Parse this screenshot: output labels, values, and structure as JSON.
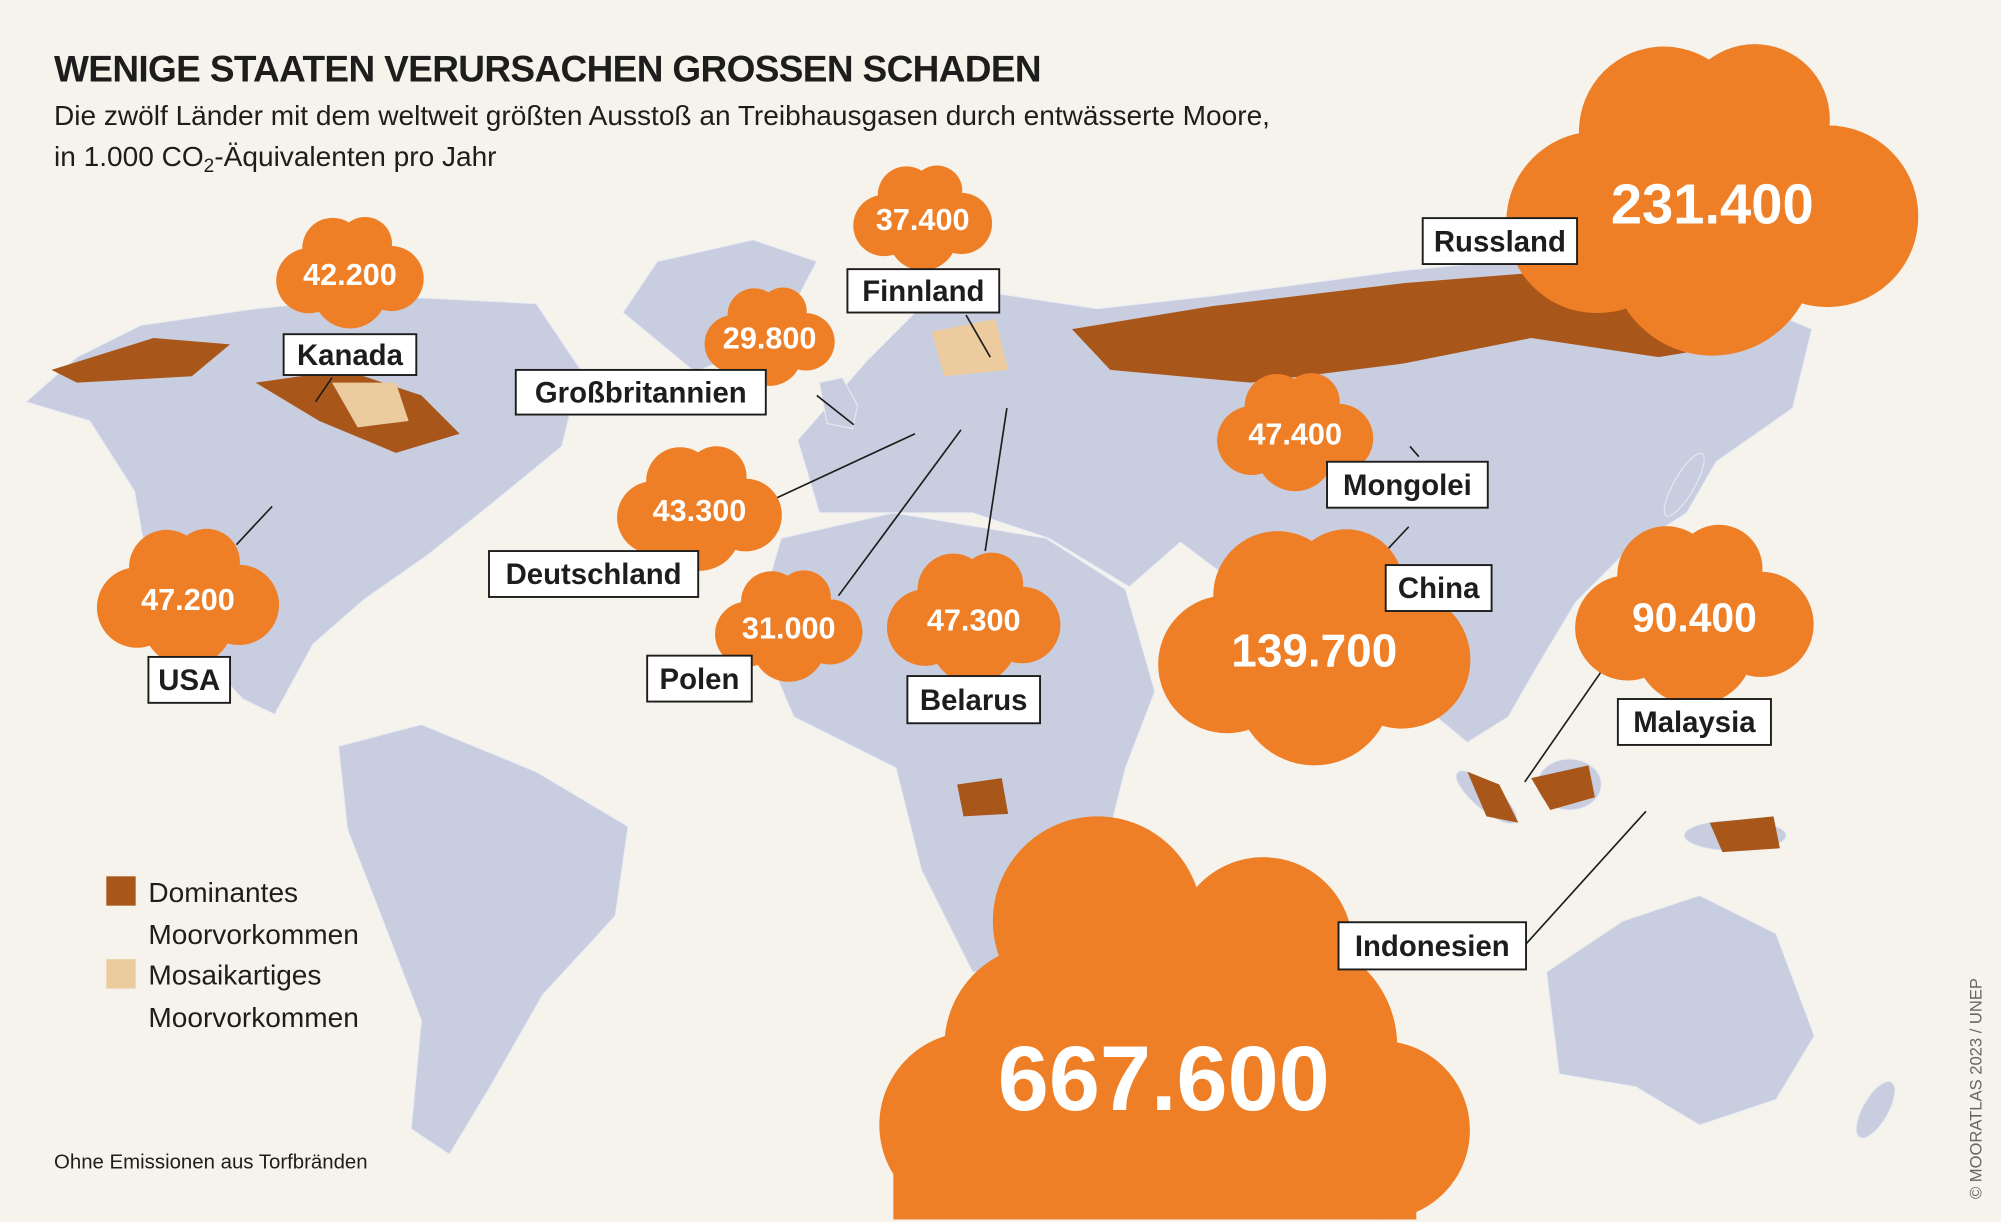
{
  "title": "WENIGE STAATEN VERURSACHEN GROSSEN SCHADEN",
  "subtitle": {
    "line1": "Die zwölf Länder mit dem weltweit größten Ausstoß an Treibhausgasen durch entwässerte Moore,",
    "line2_pre": "in 1.000 CO",
    "line2_sub": "2",
    "line2_post": "-Äquivalenten pro Jahr"
  },
  "countries": [
    {
      "name": "Kanada",
      "value": "42.200"
    },
    {
      "name": "Finnland",
      "value": "37.400"
    },
    {
      "name": "Großbritannien",
      "value": "29.800"
    },
    {
      "name": "Russland",
      "value": "231.400"
    },
    {
      "name": "Mongolei",
      "value": "47.400"
    },
    {
      "name": "China",
      "value": "139.700"
    },
    {
      "name": "Malaysia",
      "value": "90.400"
    },
    {
      "name": "Indonesien",
      "value": "667.600"
    },
    {
      "name": "Deutschland",
      "value": "43.300"
    },
    {
      "name": "USA",
      "value": "47.200"
    },
    {
      "name": "Polen",
      "value": "31.000"
    },
    {
      "name": "Belarus",
      "value": "47.300"
    }
  ],
  "legend": [
    {
      "line1": "Dominantes",
      "line2": "Moorvorkommen",
      "color": "#a9561b"
    },
    {
      "line1": "Mosaikartiges",
      "line2": "Moorvorkommen",
      "color": "#eccb9f"
    }
  ],
  "footnote": "Ohne Emissionen aus Torfbränden",
  "copyright": "© MOORATLAS 2023 / UNEP",
  "colors": {
    "background": "#f5f3ec",
    "cloud": "#ef7f26",
    "land": "#c8cedf",
    "peat_dominant": "#a9561b",
    "peat_mosaic": "#eccb9f"
  }
}
